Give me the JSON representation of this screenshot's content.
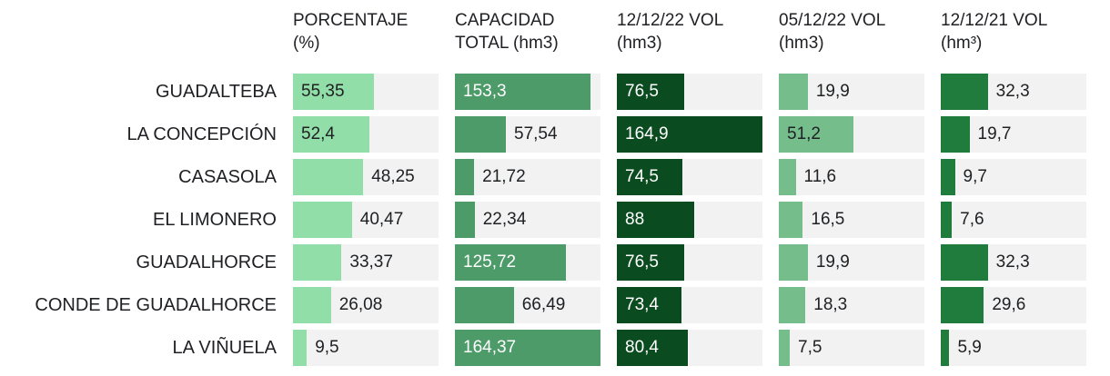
{
  "colors": {
    "background": "#ffffff",
    "track": "#f1f2f1",
    "text_dark": "#202124",
    "text_light": "#ffffff"
  },
  "chart_data": {
    "type": "bar",
    "orientation": "horizontal",
    "title": "",
    "grid": false,
    "legend": "none",
    "columns": [
      {
        "header": "PORCENTAJE\n(%)",
        "color": "#92dea8",
        "axis_max": 100,
        "value_color_inside": "#202124"
      },
      {
        "header": "CAPACIDAD\nTOTAL (hm3)",
        "color": "#4c9b68",
        "axis_max": 164.37,
        "value_color_inside": "#ffffff"
      },
      {
        "header": "12/12/22 VOL\n(hm3)",
        "color": "#0b4b20",
        "axis_max": 164.9,
        "value_color_inside": "#ffffff"
      },
      {
        "header": "05/12/22 VOL\n(hm3)",
        "color": "#75be8c",
        "axis_max": 100,
        "value_color_inside": "#202124"
      },
      {
        "header": "12/12/21 VOL\n(hm³)",
        "color": "#1f7c3d",
        "axis_max": 100,
        "value_color_inside": "#ffffff"
      }
    ],
    "rows": [
      {
        "name": "GUADALTEBA",
        "values": [
          55.35,
          153.3,
          76.5,
          19.9,
          32.3
        ],
        "labels": [
          "55,35",
          "153,3",
          "76,5",
          "19,9",
          "32,3"
        ]
      },
      {
        "name": "LA CONCEPCIÓN",
        "values": [
          52.4,
          57.54,
          164.9,
          51.2,
          19.7
        ],
        "labels": [
          "52,4",
          "57,54",
          "164,9",
          "51,2",
          "19,7"
        ]
      },
      {
        "name": "CASASOLA",
        "values": [
          48.25,
          21.72,
          74.5,
          11.6,
          9.7
        ],
        "labels": [
          "48,25",
          "21,72",
          "74,5",
          "11,6",
          "9,7"
        ]
      },
      {
        "name": "EL LIMONERO",
        "values": [
          40.47,
          22.34,
          88,
          16.5,
          7.6
        ],
        "labels": [
          "40,47",
          "22,34",
          "88",
          "16,5",
          "7,6"
        ]
      },
      {
        "name": "GUADALHORCE",
        "values": [
          33.37,
          125.72,
          76.5,
          19.9,
          32.3
        ],
        "labels": [
          "33,37",
          "125,72",
          "76,5",
          "19,9",
          "32,3"
        ]
      },
      {
        "name": "CONDE DE GUADALHORCE",
        "values": [
          26.08,
          66.49,
          73.4,
          18.3,
          29.6
        ],
        "labels": [
          "26,08",
          "66,49",
          "73,4",
          "18,3",
          "29,6"
        ]
      },
      {
        "name": "LA VIÑUELA",
        "values": [
          9.5,
          164.37,
          80.4,
          7.5,
          5.9
        ],
        "labels": [
          "9,5",
          "164,37",
          "80,4",
          "7,5",
          "5,9"
        ]
      }
    ]
  }
}
